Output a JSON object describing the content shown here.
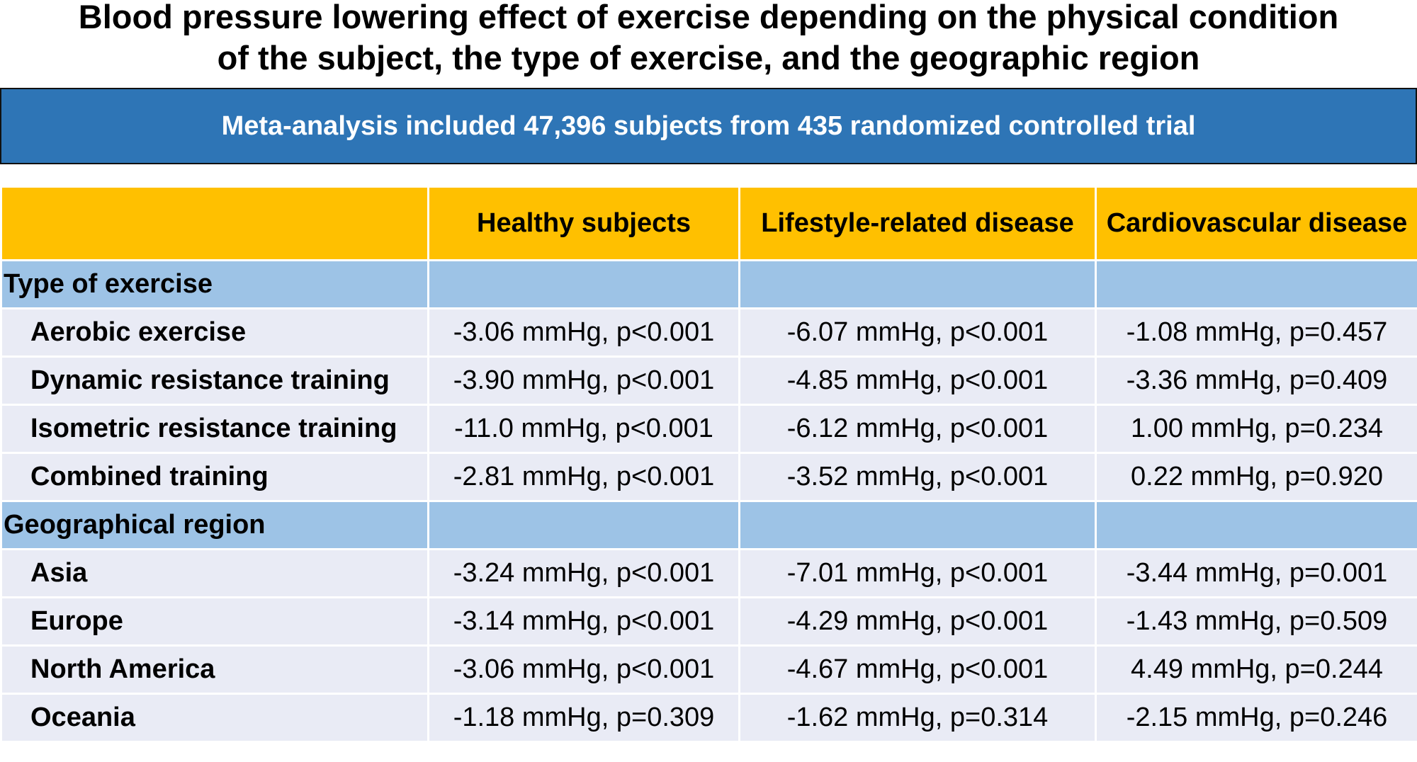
{
  "title": {
    "line1": "Blood pressure lowering effect of exercise depending on the physical condition",
    "line2": "of the subject, the type of exercise, and the geographic region"
  },
  "banner": "Meta-analysis included 47,396 subjects from 435 randomized controlled trial",
  "colors": {
    "banner": "#2E75B6",
    "header": "#FFC000",
    "section": "#9DC3E6",
    "row": "#E9EBF5"
  },
  "table": {
    "columns": [
      "",
      "Healthy subjects",
      "Lifestyle-related disease",
      "Cardiovascular disease"
    ],
    "sections": [
      {
        "label": "Type of exercise",
        "rows": [
          {
            "label": "Aerobic exercise",
            "values": [
              "-3.06 mmHg, p<0.001",
              "-6.07 mmHg, p<0.001",
              "-1.08 mmHg, p=0.457"
            ]
          },
          {
            "label": "Dynamic resistance training",
            "values": [
              "-3.90 mmHg, p<0.001",
              "-4.85 mmHg, p<0.001",
              "-3.36 mmHg, p=0.409"
            ]
          },
          {
            "label": "Isometric resistance training",
            "values": [
              "-11.0 mmHg, p<0.001",
              "-6.12 mmHg, p<0.001",
              "1.00 mmHg, p=0.234"
            ]
          },
          {
            "label": "Combined training",
            "values": [
              "-2.81 mmHg, p<0.001",
              "-3.52 mmHg, p<0.001",
              "0.22 mmHg, p=0.920"
            ]
          }
        ]
      },
      {
        "label": "Geographical region",
        "rows": [
          {
            "label": "Asia",
            "values": [
              "-3.24 mmHg, p<0.001",
              "-7.01 mmHg, p<0.001",
              "-3.44 mmHg, p=0.001"
            ]
          },
          {
            "label": "Europe",
            "values": [
              "-3.14 mmHg, p<0.001",
              "-4.29 mmHg, p<0.001",
              "-1.43 mmHg, p=0.509"
            ]
          },
          {
            "label": "North America",
            "values": [
              "-3.06 mmHg, p<0.001",
              "-4.67 mmHg, p<0.001",
              "4.49 mmHg, p=0.244"
            ]
          },
          {
            "label": "Oceania",
            "values": [
              "-1.18 mmHg, p=0.309",
              "-1.62 mmHg, p=0.314",
              "-2.15 mmHg, p=0.246"
            ]
          }
        ]
      }
    ]
  }
}
